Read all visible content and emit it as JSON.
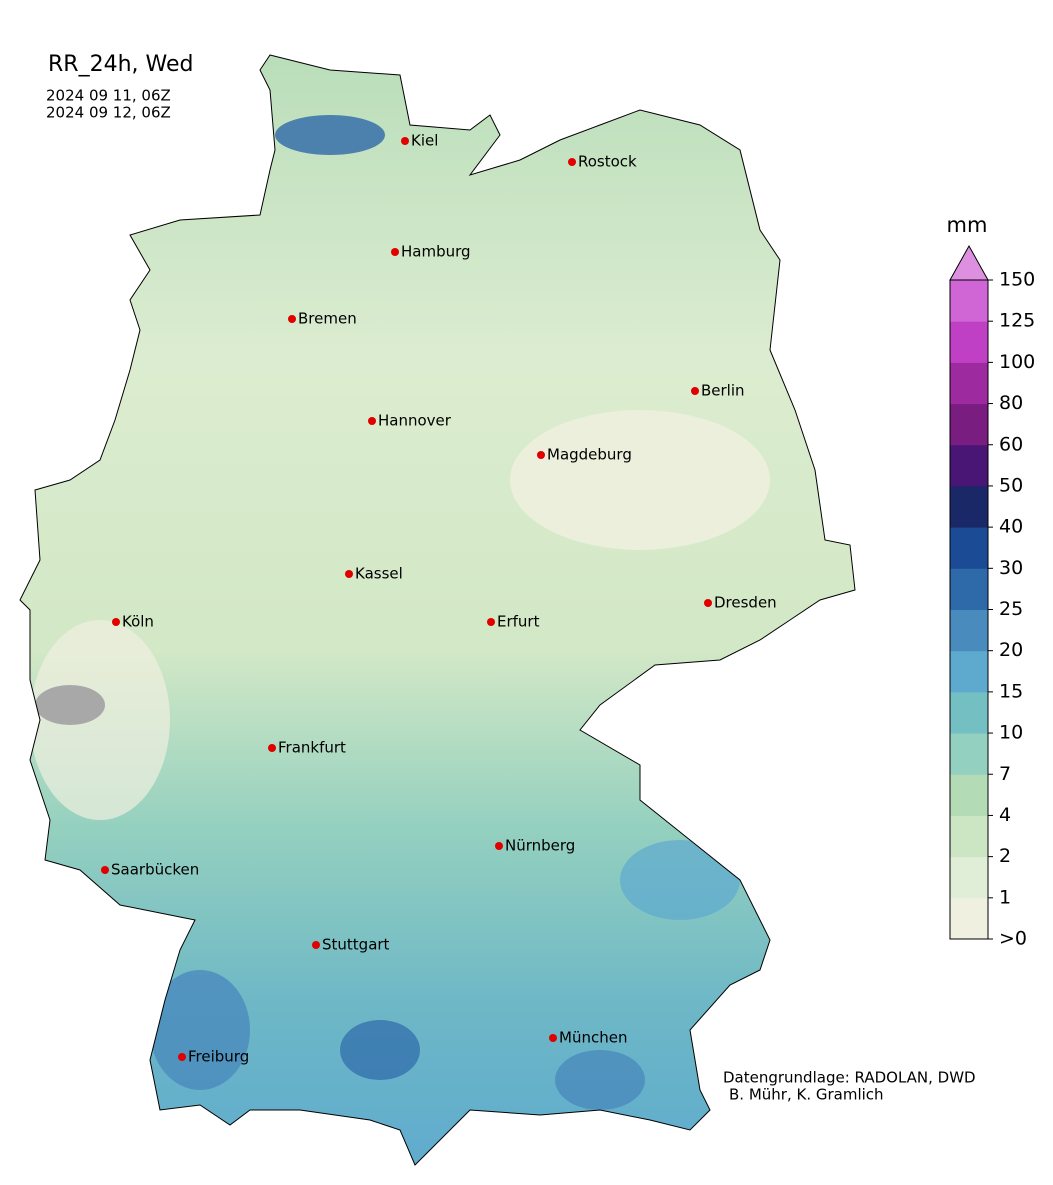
{
  "header": {
    "title": "RR_24h, Wed",
    "dates": [
      "2024 09 11, 06Z",
      "2024 09 12, 06Z"
    ]
  },
  "cities": [
    "Kiel",
    "Rostock",
    "Hamburg",
    "Bremen",
    "Berlin",
    "Hannover",
    "Magdeburg",
    "Kassel",
    "Dresden",
    "Köln",
    "Erfurt",
    "Frankfurt",
    "Nürnberg",
    "Saarbücken",
    "Stuttgart",
    "München",
    "Freiburg"
  ],
  "colorbar": {
    "unit": "mm",
    "levels": [
      ">0",
      1,
      2,
      4,
      7,
      10,
      15,
      20,
      25,
      30,
      40,
      50,
      60,
      80,
      100,
      125,
      150
    ],
    "colors": [
      "#f0f0e0",
      "#e0eed8",
      "#cce6c4",
      "#b3dbb6",
      "#94d0bf",
      "#74bfc2",
      "#5eaacf",
      "#4a8bbd",
      "#2e69a9",
      "#1c4b95",
      "#1a2868",
      "#4a1675",
      "#7a1d80",
      "#9e2aa0",
      "#bf40c4",
      "#d066d6"
    ],
    "extend_color": "#dd90e0"
  },
  "credits": [
    "Datengrundlage: RADOLAN, DWD",
    "B. Mühr, K. Gramlich"
  ]
}
